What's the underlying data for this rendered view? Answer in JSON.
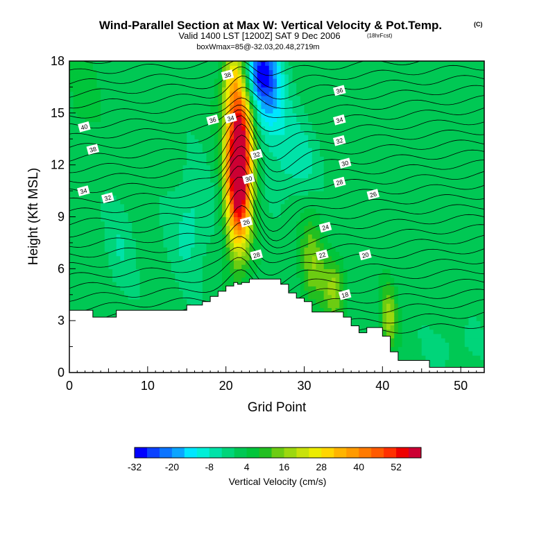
{
  "title": {
    "main": "Wind-Parallel Section at Max W: Vertical Velocity & Pot.Temp.",
    "copyright": "(C)",
    "valid": "Valid 1400 LST [1200Z] SAT 9 Dec 2006",
    "forecast": "(18hrFcst)",
    "box": "boxWmax=85@-32.03,20.48,2719m"
  },
  "chart_data": {
    "type": "heatmap",
    "xlabel": "Grid Point",
    "ylabel": "Height (Kft MSL)",
    "xlim": [
      0,
      53
    ],
    "ylim": [
      0,
      18
    ],
    "xticks": [
      0,
      10,
      20,
      30,
      40,
      50
    ],
    "yticks": [
      0,
      3,
      6,
      9,
      12,
      15,
      18
    ],
    "terrain": {
      "x": [
        0,
        3,
        3,
        6,
        6,
        15,
        15,
        17,
        17,
        18,
        18,
        19,
        19,
        20,
        20,
        21,
        21,
        21.5,
        21.5,
        22,
        22,
        23,
        23,
        24,
        24,
        27,
        27,
        28,
        28,
        29,
        29,
        30,
        30,
        31,
        31,
        35,
        35,
        36,
        36,
        37,
        37,
        38,
        38,
        40,
        40,
        41,
        41,
        42,
        42,
        46,
        46,
        53
      ],
      "height": [
        3.6,
        3.6,
        3.2,
        3.2,
        3.6,
        3.6,
        3.9,
        3.9,
        4.1,
        4.1,
        4.4,
        4.4,
        4.7,
        4.7,
        5.0,
        5.0,
        5.2,
        5.2,
        5.1,
        5.1,
        5.2,
        5.2,
        5.4,
        5.4,
        5.4,
        5.4,
        5.1,
        5.1,
        4.6,
        4.6,
        4.3,
        4.3,
        4.1,
        4.1,
        3.5,
        3.5,
        3.2,
        3.2,
        2.7,
        2.7,
        2.3,
        2.3,
        2.6,
        2.6,
        2.1,
        2.1,
        1.2,
        1.2,
        0.7,
        0.7,
        0.3,
        0.3
      ]
    },
    "vertical_velocity": {
      "background_value": 2,
      "features": [
        {
          "x": 21.6,
          "z": 11.0,
          "sx": 1.1,
          "sz": 2.8,
          "value": 58
        },
        {
          "x": 21.9,
          "z": 14.2,
          "sx": 1.3,
          "sz": 2.4,
          "value": 30
        },
        {
          "x": 20.9,
          "z": 17.0,
          "sx": 1.0,
          "sz": 1.5,
          "value": 18
        },
        {
          "x": 24.4,
          "z": 17.3,
          "sx": 1.6,
          "sz": 1.3,
          "value": -34
        },
        {
          "x": 25.5,
          "z": 15.0,
          "sx": 1.6,
          "sz": 1.3,
          "value": -14
        },
        {
          "x": 28.5,
          "z": 12.4,
          "sx": 2.2,
          "sz": 1.6,
          "value": -9
        },
        {
          "x": 15.5,
          "z": 8.6,
          "sx": 1.8,
          "sz": 2.3,
          "value": -8
        },
        {
          "x": 6.5,
          "z": 7.3,
          "sx": 1.5,
          "sz": 2.0,
          "value": -5
        },
        {
          "x": 31.0,
          "z": 6.3,
          "sx": 1.1,
          "sz": 1.8,
          "value": 13
        },
        {
          "x": 33.8,
          "z": 4.9,
          "sx": 1.0,
          "sz": 1.3,
          "value": 14
        },
        {
          "x": 40.8,
          "z": 3.2,
          "sx": 0.7,
          "sz": 1.3,
          "value": 16
        },
        {
          "x": 49.0,
          "z": 1.6,
          "sx": 2.8,
          "sz": 1.0,
          "value": -3
        },
        {
          "x": 1.2,
          "z": 16.0,
          "sx": 1.5,
          "sz": 2.0,
          "value": 4
        }
      ]
    },
    "theta_labels": [
      {
        "x": 20.2,
        "z": 17.2,
        "text": "38"
      },
      {
        "x": 34.5,
        "z": 16.3,
        "text": "36"
      },
      {
        "x": 1.9,
        "z": 14.2,
        "text": "40"
      },
      {
        "x": 18.3,
        "z": 14.6,
        "text": "36"
      },
      {
        "x": 20.6,
        "z": 14.7,
        "text": "34"
      },
      {
        "x": 34.5,
        "z": 14.6,
        "text": "34"
      },
      {
        "x": 3.0,
        "z": 12.9,
        "text": "38"
      },
      {
        "x": 23.9,
        "z": 12.6,
        "text": "32"
      },
      {
        "x": 34.5,
        "z": 13.4,
        "text": "32"
      },
      {
        "x": 35.2,
        "z": 12.1,
        "text": "30"
      },
      {
        "x": 22.9,
        "z": 11.2,
        "text": "30"
      },
      {
        "x": 1.8,
        "z": 10.5,
        "text": "34"
      },
      {
        "x": 34.5,
        "z": 11.0,
        "text": "28"
      },
      {
        "x": 4.9,
        "z": 10.1,
        "text": "32"
      },
      {
        "x": 38.8,
        "z": 10.3,
        "text": "26"
      },
      {
        "x": 22.6,
        "z": 8.7,
        "text": "26"
      },
      {
        "x": 32.7,
        "z": 8.4,
        "text": "24"
      },
      {
        "x": 32.3,
        "z": 6.8,
        "text": "22"
      },
      {
        "x": 37.8,
        "z": 6.8,
        "text": "20"
      },
      {
        "x": 23.9,
        "z": 6.8,
        "text": "28"
      },
      {
        "x": 35.2,
        "z": 4.5,
        "text": "18"
      }
    ]
  },
  "colorbar": {
    "label": "Vertical Velocity (cm/s)",
    "min": -32,
    "max": 60,
    "step": 4,
    "tick_values": [
      -32,
      -20,
      -8,
      4,
      16,
      28,
      40,
      52
    ],
    "tick_labels": [
      "-32",
      "-20",
      "-8",
      "4",
      "16",
      "28",
      "40",
      "52"
    ],
    "colors": [
      "#0000ff",
      "#0b42ff",
      "#0a74ff",
      "#0aa5ff",
      "#00e6ff",
      "#00efd8",
      "#00e2a8",
      "#00d57a",
      "#00c854",
      "#00c53b",
      "#22bf21",
      "#6ccc12",
      "#9cd80f",
      "#c8e10b",
      "#ecec00",
      "#ffd500",
      "#ffb400",
      "#ff9a00",
      "#ff7a00",
      "#ff5a00",
      "#ff3000",
      "#ee0000",
      "#cc0033"
    ]
  }
}
